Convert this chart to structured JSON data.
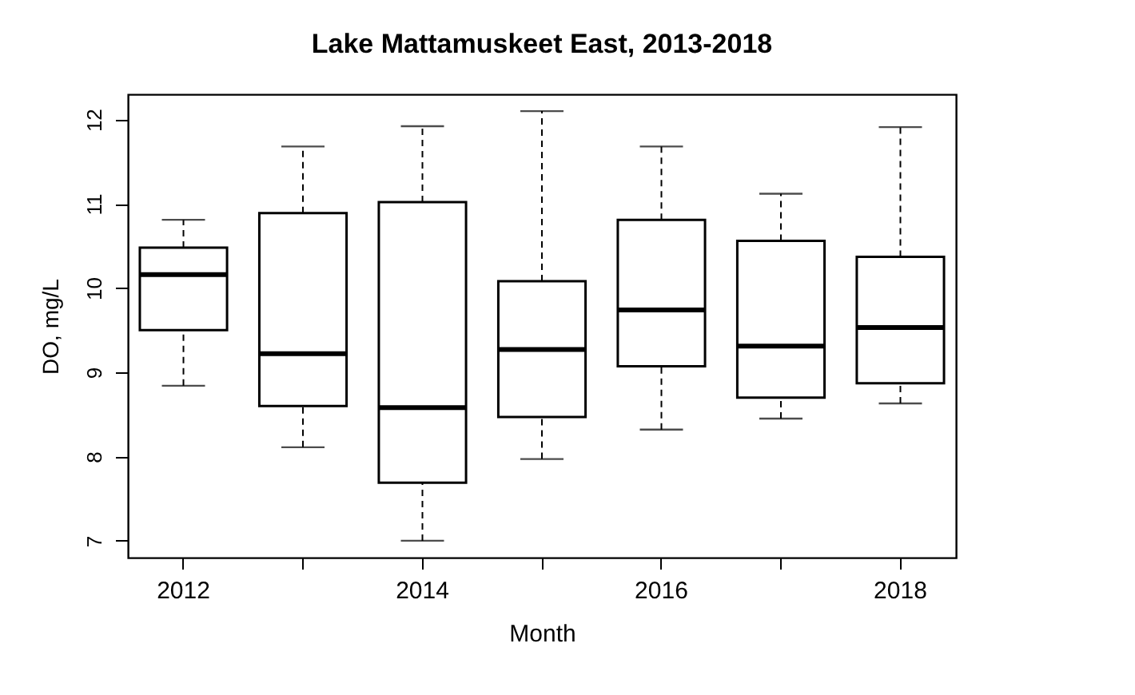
{
  "chart_data": {
    "type": "box",
    "title": "Lake Mattamuskeet East, 2013-2018",
    "xlabel": "Month",
    "ylabel": "DO, mg/L",
    "categories": [
      "2012",
      null,
      "2014",
      null,
      "2016",
      null,
      "2018"
    ],
    "ylim": [
      6.8,
      12.3
    ],
    "yticks": [
      7,
      8,
      9,
      10,
      11,
      12
    ],
    "boxes": [
      {
        "low": 8.84,
        "q1": 9.5,
        "median": 10.16,
        "q3": 10.48,
        "high": 10.81
      },
      {
        "low": 8.11,
        "q1": 8.6,
        "median": 9.22,
        "q3": 10.89,
        "high": 11.68
      },
      {
        "low": 7.0,
        "q1": 7.69,
        "median": 8.58,
        "q3": 11.02,
        "high": 11.92
      },
      {
        "low": 7.97,
        "q1": 8.47,
        "median": 9.27,
        "q3": 10.08,
        "high": 12.1
      },
      {
        "low": 8.32,
        "q1": 9.07,
        "median": 9.74,
        "q3": 10.81,
        "high": 11.68
      },
      {
        "low": 8.45,
        "q1": 8.7,
        "median": 9.31,
        "q3": 10.56,
        "high": 11.12
      },
      {
        "low": 8.63,
        "q1": 8.87,
        "median": 9.53,
        "q3": 10.37,
        "high": 11.91
      }
    ]
  }
}
